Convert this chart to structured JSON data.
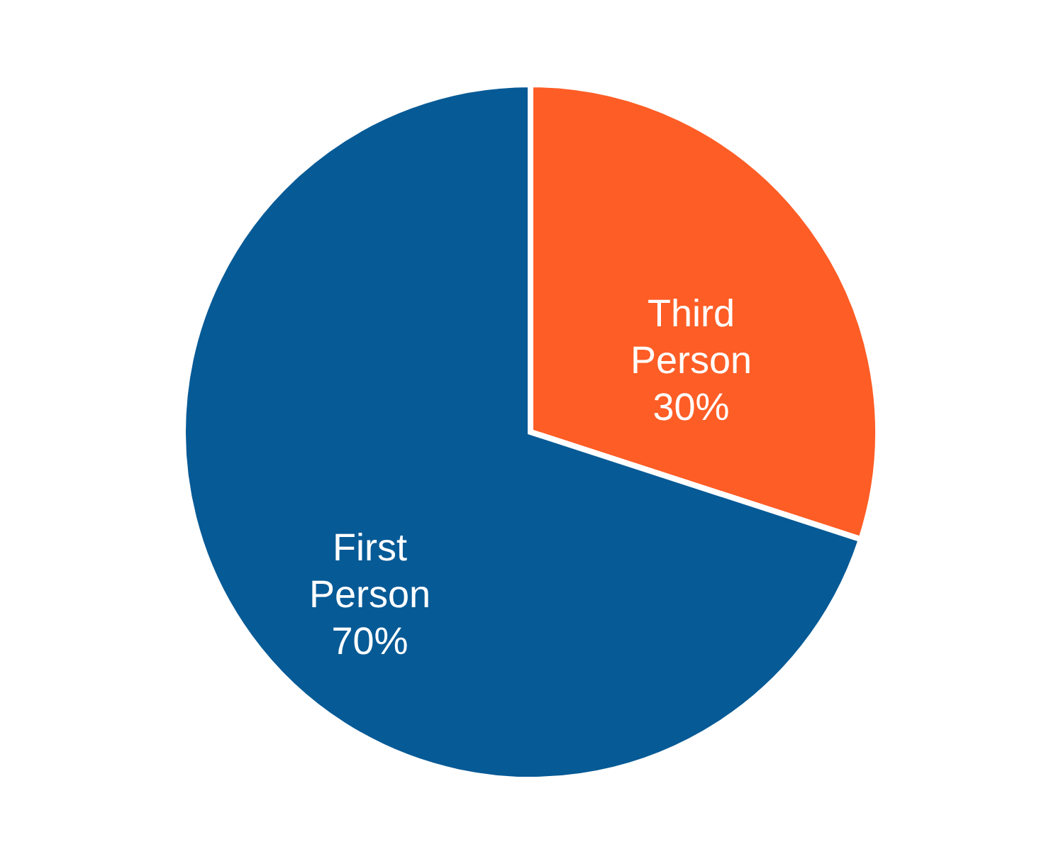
{
  "chart_data": {
    "type": "pie",
    "categories": [
      "Third Person",
      "First Person"
    ],
    "values": [
      30,
      70
    ],
    "colors": [
      "#fe5d26",
      "#065a96"
    ],
    "value_labels": [
      "30%",
      "70%"
    ],
    "legend": false
  }
}
